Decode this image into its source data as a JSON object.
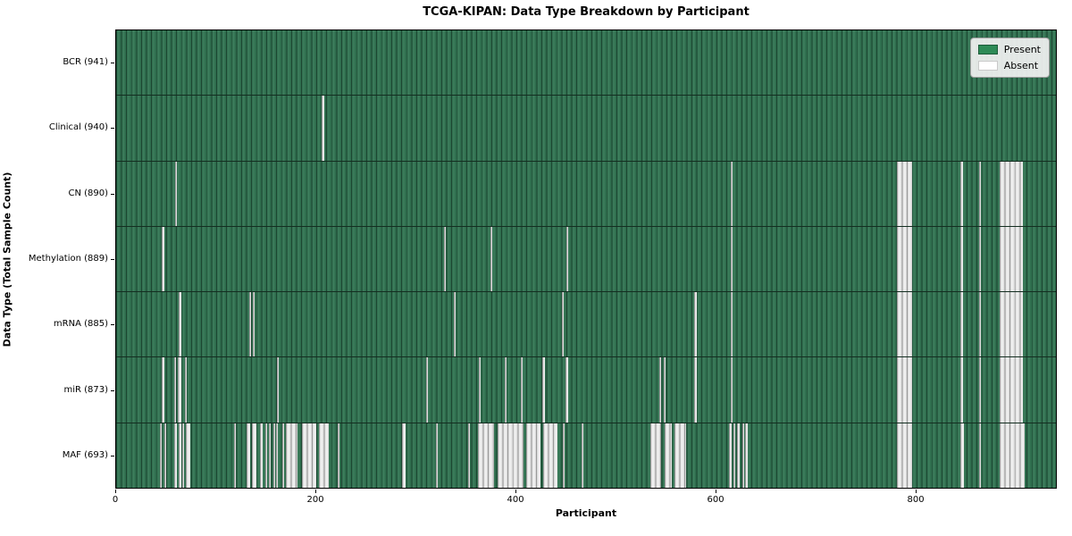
{
  "chart_data": {
    "type": "heatmap",
    "title": "TCGA-KIPAN: Data Type Breakdown by Participant",
    "xlabel": "Participant",
    "ylabel": "Data Type (Total Sample Count)",
    "x_range": [
      0,
      941
    ],
    "xticks": [
      0,
      200,
      400,
      600,
      800
    ],
    "grid": false,
    "legend_position": "upper right",
    "legend": [
      {
        "label": "Present",
        "color": "#2e8b57"
      },
      {
        "label": "Absent",
        "color": "#ffffff"
      }
    ],
    "colors": {
      "present_mid": "#2f6e4e",
      "present_light": "#3f7f5e",
      "present_dark": "#1c4631",
      "absent_light": "#efefef",
      "absent_mid": "#cfcfcf",
      "absent_dark": "#9a9a9a",
      "row_separator": "#142e21"
    },
    "rows": [
      {
        "label": "BCR (941)",
        "data_type": "BCR",
        "present_count": 941,
        "absent_ranges": []
      },
      {
        "label": "Clinical (940)",
        "data_type": "Clinical",
        "present_count": 940,
        "absent_ranges": [
          [
            206,
            208
          ]
        ]
      },
      {
        "label": "CN (890)",
        "data_type": "CN",
        "present_count": 890,
        "absent_ranges": [
          [
            59,
            61
          ],
          [
            615,
            617
          ],
          [
            782,
            797
          ],
          [
            845,
            848
          ],
          [
            864,
            866
          ],
          [
            885,
            908
          ]
        ]
      },
      {
        "label": "Methylation (889)",
        "data_type": "Methylation",
        "present_count": 889,
        "absent_ranges": [
          [
            46,
            48
          ],
          [
            328,
            330
          ],
          [
            375,
            377
          ],
          [
            451,
            453
          ],
          [
            615,
            617
          ],
          [
            782,
            797
          ],
          [
            845,
            848
          ],
          [
            864,
            866
          ],
          [
            885,
            908
          ]
        ]
      },
      {
        "label": "mRNA (885)",
        "data_type": "mRNA",
        "present_count": 885,
        "absent_ranges": [
          [
            63,
            65
          ],
          [
            133,
            135
          ],
          [
            137,
            139
          ],
          [
            338,
            340
          ],
          [
            446,
            448
          ],
          [
            579,
            581
          ],
          [
            615,
            617
          ],
          [
            782,
            797
          ],
          [
            845,
            848
          ],
          [
            864,
            866
          ],
          [
            885,
            908
          ]
        ]
      },
      {
        "label": "miR (873)",
        "data_type": "miR",
        "present_count": 873,
        "absent_ranges": [
          [
            46,
            48
          ],
          [
            58,
            60
          ],
          [
            62,
            65
          ],
          [
            69,
            71
          ],
          [
            161,
            163
          ],
          [
            310,
            312
          ],
          [
            363,
            365
          ],
          [
            389,
            391
          ],
          [
            405,
            407
          ],
          [
            427,
            429
          ],
          [
            450,
            453
          ],
          [
            544,
            546
          ],
          [
            548,
            550
          ],
          [
            579,
            581
          ],
          [
            615,
            617
          ],
          [
            782,
            797
          ],
          [
            845,
            848
          ],
          [
            864,
            866
          ],
          [
            885,
            908
          ]
        ]
      },
      {
        "label": "MAF (693)",
        "data_type": "MAF",
        "present_count": 693,
        "absent_ranges": [
          [
            44,
            46
          ],
          [
            48,
            50
          ],
          [
            58,
            61
          ],
          [
            63,
            65
          ],
          [
            66,
            68
          ],
          [
            70,
            74
          ],
          [
            118,
            120
          ],
          [
            131,
            134
          ],
          [
            136,
            140
          ],
          [
            144,
            147
          ],
          [
            149,
            151
          ],
          [
            153,
            155
          ],
          [
            157,
            159
          ],
          [
            160,
            162
          ],
          [
            166,
            168
          ],
          [
            170,
            182
          ],
          [
            186,
            200
          ],
          [
            203,
            213
          ],
          [
            222,
            224
          ],
          [
            286,
            290
          ],
          [
            320,
            322
          ],
          [
            352,
            354
          ],
          [
            362,
            378
          ],
          [
            382,
            408
          ],
          [
            411,
            425
          ],
          [
            428,
            442
          ],
          [
            447,
            449
          ],
          [
            466,
            468
          ],
          [
            535,
            546
          ],
          [
            549,
            556
          ],
          [
            559,
            571
          ],
          [
            614,
            616
          ],
          [
            618,
            620
          ],
          [
            622,
            624
          ],
          [
            627,
            629
          ],
          [
            630,
            632
          ],
          [
            782,
            797
          ],
          [
            845,
            849
          ],
          [
            864,
            866
          ],
          [
            885,
            910
          ]
        ]
      }
    ]
  }
}
